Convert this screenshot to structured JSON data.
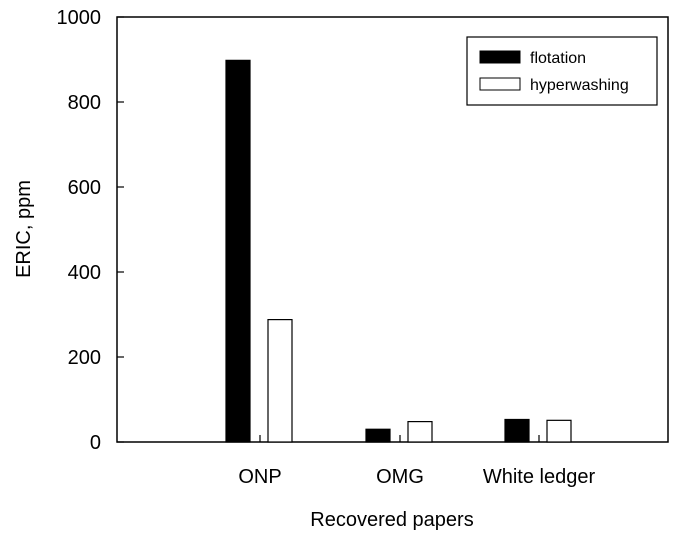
{
  "chart_data": {
    "type": "bar",
    "xlabel": "Recovered papers",
    "ylabel": "ERIC, ppm",
    "ylim": [
      0,
      1000
    ],
    "yticks": [
      0,
      200,
      400,
      600,
      800,
      1000
    ],
    "categories": [
      "ONP",
      "OMG",
      "White ledger"
    ],
    "series": [
      {
        "name": "flotation",
        "values": [
          898,
          30,
          53
        ],
        "fill": "#000000"
      },
      {
        "name": "hyperwashing",
        "values": [
          288,
          48,
          51
        ],
        "fill": "#ffffff"
      }
    ],
    "grid": false,
    "legend_position": "top-right"
  }
}
